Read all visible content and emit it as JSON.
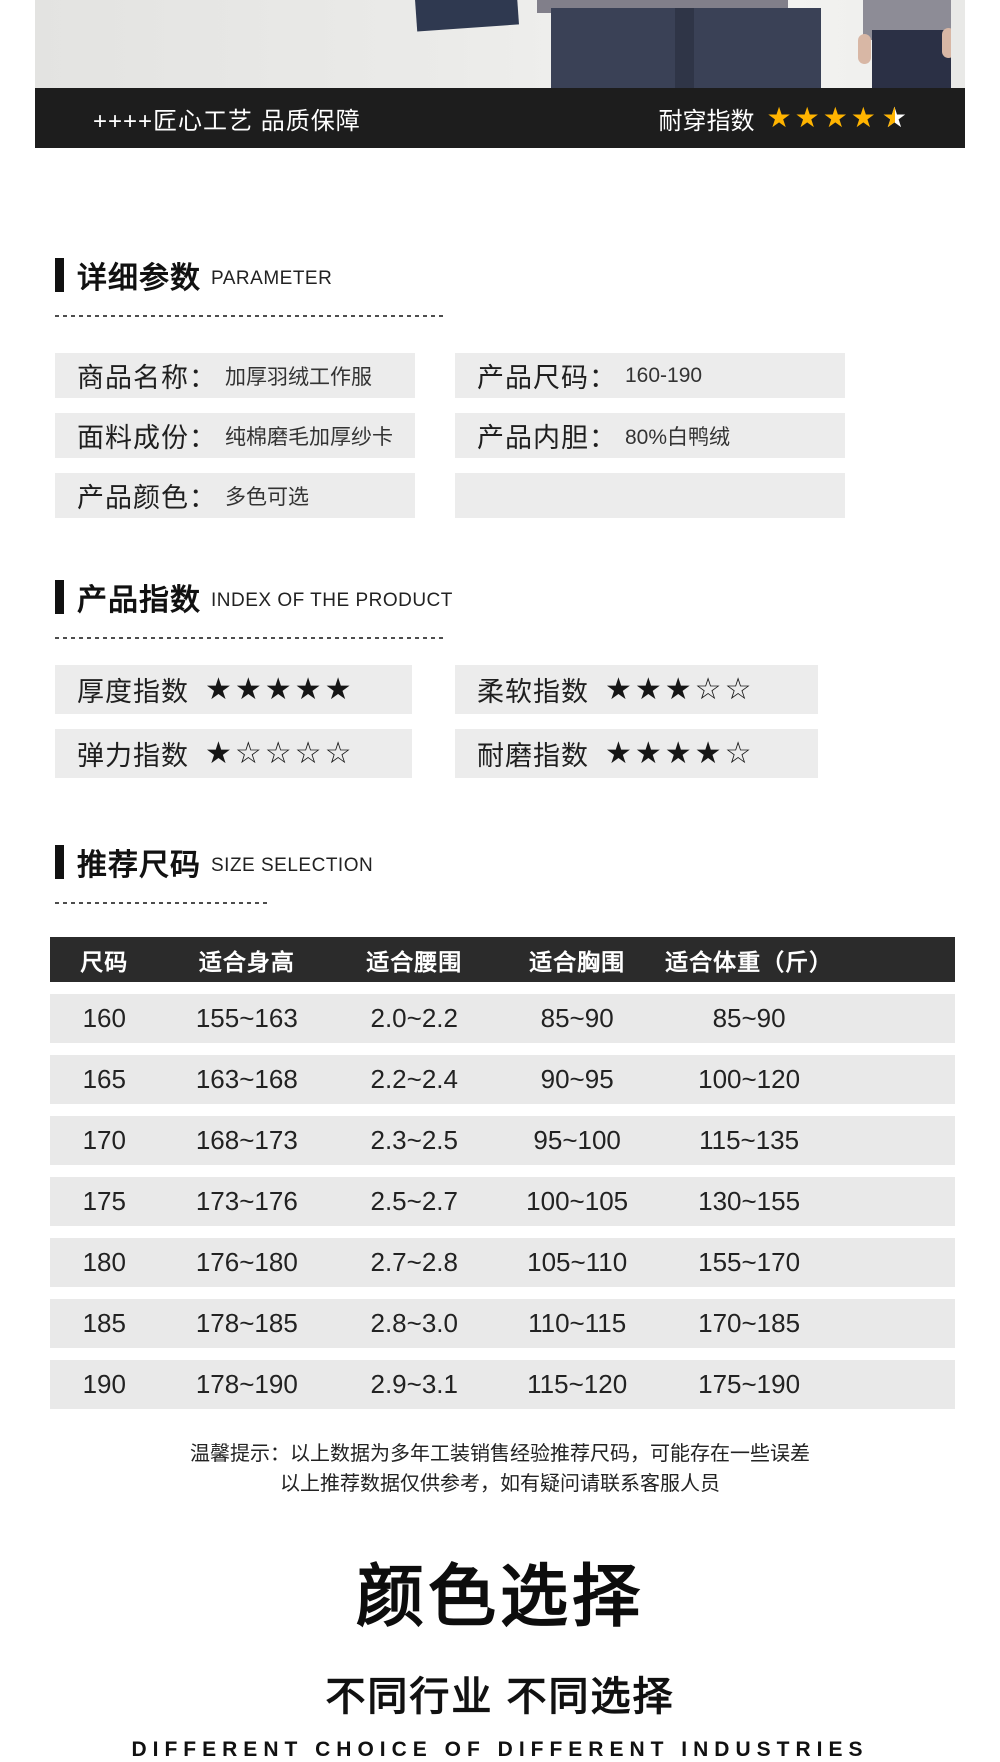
{
  "banner": {
    "left_text": "++++匠心工艺 品质保障",
    "durability_label": "耐穿指数",
    "rating": 4.5,
    "stars_full": "★★★★",
    "star_half": "★",
    "star_color": "#ffb400"
  },
  "parameter_section": {
    "title_cn": "详细参数",
    "title_en": "PARAMETER",
    "left_rows": [
      {
        "label": "商品名称：",
        "value": "加厚羽绒工作服"
      },
      {
        "label": "面料成份：",
        "value": "纯棉磨毛加厚纱卡"
      },
      {
        "label": "产品颜色：",
        "value": "多色可选"
      }
    ],
    "right_rows": [
      {
        "label": "产品尺码：",
        "value": "160-190"
      },
      {
        "label": "产品内胆：",
        "value": "80%白鸭绒"
      }
    ]
  },
  "index_section": {
    "title_cn": "产品指数",
    "title_en": "INDEX OF THE PRODUCT",
    "items": [
      {
        "label": "厚度指数",
        "stars": "★★★★★",
        "value": 5
      },
      {
        "label": "柔软指数",
        "stars": "★★★☆☆",
        "value": 3
      },
      {
        "label": "弹力指数",
        "stars": "★☆☆☆☆",
        "value": 1
      },
      {
        "label": "耐磨指数",
        "stars": "★★★★☆",
        "value": 4
      }
    ]
  },
  "size_section": {
    "title_cn": "推荐尺码",
    "title_en": "SIZE SELECTION",
    "table": {
      "headers": [
        "尺码",
        "适合身高",
        "适合腰围",
        "适合胸围",
        "适合体重（斤）"
      ],
      "rows": [
        [
          "160",
          "155~163",
          "2.0~2.2",
          "85~90",
          "85~90"
        ],
        [
          "165",
          "163~168",
          "2.2~2.4",
          "90~95",
          "100~120"
        ],
        [
          "170",
          "168~173",
          "2.3~2.5",
          "95~100",
          "115~135"
        ],
        [
          "175",
          "173~176",
          "2.5~2.7",
          "100~105",
          "130~155"
        ],
        [
          "180",
          "176~180",
          "2.7~2.8",
          "105~110",
          "155~170"
        ],
        [
          "185",
          "178~185",
          "2.8~3.0",
          "110~115",
          "170~185"
        ],
        [
          "190",
          "178~190",
          "2.9~3.1",
          "115~120",
          "175~190"
        ]
      ]
    },
    "note_line1": "温馨提示：以上数据为多年工装销售经验推荐尺码，可能存在一些误差",
    "note_line2": "以上推荐数据仅供参考，如有疑问请联系客服人员"
  },
  "color_section": {
    "title": "颜色选择",
    "subtitle": "不同行业 不同选择",
    "subtitle_en": "DIFFERENT CHOICE OF DIFFERENT INDUSTRIES"
  }
}
